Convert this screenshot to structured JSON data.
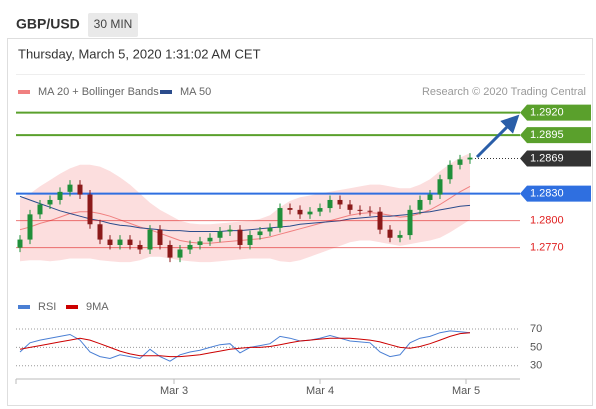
{
  "header": {
    "symbol": "GBP/USD",
    "interval": "30 MIN",
    "date": "Thursday, March 5, 2020 1:31:02 AM CET"
  },
  "chart_data": [
    {
      "type": "candlestick",
      "annotation": "Research © 2020 Trading Central",
      "xlim": [
        -0.4,
        50
      ],
      "ylim": [
        1.2723,
        1.2934
      ],
      "up_color": "#1f8f3a",
      "down_color": "#8b1a1a",
      "open": [
        1.277,
        1.2779,
        1.2807,
        1.2818,
        1.2823,
        1.2832,
        1.284,
        1.2829,
        1.2796,
        1.2779,
        1.2773,
        1.2779,
        1.2773,
        1.2768,
        1.279,
        1.2773,
        1.2759,
        1.2768,
        1.2773,
        1.2777,
        1.2781,
        1.2788,
        1.279,
        1.2773,
        1.2784,
        1.2788,
        1.2792,
        1.2814,
        1.2812,
        1.2807,
        1.281,
        1.2814,
        1.2823,
        1.2818,
        1.2812,
        1.2811,
        1.281,
        1.279,
        1.2781,
        1.2784,
        1.2812,
        1.2823,
        1.2829,
        1.2846,
        1.2862,
        1.2868
      ],
      "high": [
        1.2784,
        1.2812,
        1.2823,
        1.2828,
        1.2837,
        1.2845,
        1.2845,
        1.2834,
        1.2801,
        1.2784,
        1.2784,
        1.2784,
        1.2778,
        1.2795,
        1.2795,
        1.2778,
        1.2773,
        1.2778,
        1.2782,
        1.2786,
        1.2793,
        1.2795,
        1.2795,
        1.2789,
        1.2793,
        1.2797,
        1.2819,
        1.2819,
        1.2817,
        1.2815,
        1.2819,
        1.2828,
        1.2828,
        1.2823,
        1.2817,
        1.2816,
        1.2815,
        1.2795,
        1.2789,
        1.2817,
        1.2828,
        1.2834,
        1.2851,
        1.2867,
        1.2873,
        1.2875
      ],
      "low": [
        1.2765,
        1.2774,
        1.2802,
        1.2813,
        1.2818,
        1.2827,
        1.2824,
        1.2791,
        1.2774,
        1.2768,
        1.2768,
        1.2768,
        1.2763,
        1.2763,
        1.2768,
        1.2754,
        1.2754,
        1.2763,
        1.2768,
        1.2772,
        1.2776,
        1.2783,
        1.2768,
        1.2768,
        1.2779,
        1.2783,
        1.2787,
        1.2807,
        1.2802,
        1.2802,
        1.2805,
        1.2809,
        1.2813,
        1.2807,
        1.2806,
        1.2805,
        1.2785,
        1.2776,
        1.2776,
        1.2779,
        1.2807,
        1.2818,
        1.2824,
        1.2841,
        1.2857,
        1.2863
      ],
      "close": [
        1.2779,
        1.2807,
        1.2818,
        1.2823,
        1.2832,
        1.284,
        1.2829,
        1.2796,
        1.2779,
        1.2773,
        1.2779,
        1.2773,
        1.2768,
        1.279,
        1.2773,
        1.2759,
        1.2768,
        1.2773,
        1.2777,
        1.2781,
        1.2788,
        1.279,
        1.2773,
        1.2784,
        1.2788,
        1.2792,
        1.2814,
        1.2812,
        1.2807,
        1.281,
        1.2814,
        1.2823,
        1.2818,
        1.2812,
        1.2811,
        1.281,
        1.279,
        1.2781,
        1.2784,
        1.2812,
        1.2823,
        1.2829,
        1.2846,
        1.2862,
        1.2868,
        1.287
      ],
      "series": [
        {
          "name": "MA 20 + Bollinger Bands",
          "color": "#f08080",
          "band_color": "#fcdede",
          "values": [
            1.279,
            1.2793,
            1.2797,
            1.28,
            1.2804,
            1.2808,
            1.281,
            1.281,
            1.2808,
            1.2805,
            1.2801,
            1.2797,
            1.2793,
            1.279,
            1.2786,
            1.2782,
            1.2778,
            1.2776,
            1.2775,
            1.2775,
            1.2776,
            1.2777,
            1.2778,
            1.2779,
            1.278,
            1.2782,
            1.2785,
            1.2788,
            1.2791,
            1.2794,
            1.2797,
            1.28,
            1.2803,
            1.2806,
            1.2808,
            1.2809,
            1.2808,
            1.2806,
            1.2804,
            1.2805,
            1.2808,
            1.2812,
            1.2818,
            1.2825,
            1.2832,
            1.2838
          ],
          "band_upper": [
            1.2825,
            1.283,
            1.2838,
            1.2845,
            1.2852,
            1.2858,
            1.2862,
            1.2862,
            1.286,
            1.2855,
            1.2848,
            1.284,
            1.283,
            1.282,
            1.2812,
            1.2806,
            1.28,
            1.2797,
            1.2796,
            1.2796,
            1.2797,
            1.2798,
            1.2799,
            1.28,
            1.2802,
            1.2806,
            1.2815,
            1.2822,
            1.2826,
            1.2828,
            1.283,
            1.2832,
            1.2834,
            1.2836,
            1.2838,
            1.284,
            1.284,
            1.2838,
            1.2836,
            1.2836,
            1.284,
            1.2846,
            1.2855,
            1.2863,
            1.287,
            1.2875
          ],
          "band_lower": [
            1.2755,
            1.2756,
            1.2756,
            1.2755,
            1.2756,
            1.2758,
            1.2758,
            1.2758,
            1.2756,
            1.2755,
            1.2754,
            1.2754,
            1.2756,
            1.276,
            1.276,
            1.2758,
            1.2756,
            1.2755,
            1.2754,
            1.2754,
            1.2755,
            1.2756,
            1.2757,
            1.2758,
            1.2758,
            1.2758,
            1.2755,
            1.2754,
            1.2756,
            1.276,
            1.2764,
            1.2768,
            1.2772,
            1.2776,
            1.2778,
            1.2778,
            1.2776,
            1.2774,
            1.2772,
            1.2774,
            1.2776,
            1.2778,
            1.2781,
            1.2787,
            1.2794,
            1.2801
          ]
        },
        {
          "name": "MA 50",
          "color": "#2b4c8c",
          "values": [
            1.2827,
            1.2823,
            1.2819,
            1.2815,
            1.2811,
            1.2808,
            1.2805,
            1.2802,
            1.28,
            1.2797,
            1.2795,
            1.2794,
            1.2792,
            1.2791,
            1.279,
            1.2789,
            1.2789,
            1.2788,
            1.2788,
            1.2788,
            1.2788,
            1.2789,
            1.2789,
            1.279,
            1.2791,
            1.2792,
            1.2793,
            1.2794,
            1.2796,
            1.2797,
            1.2798,
            1.2799,
            1.28,
            1.2802,
            1.2803,
            1.2804,
            1.2805,
            1.2805,
            1.2806,
            1.2807,
            1.2809,
            1.281,
            1.2812,
            1.2814,
            1.2816,
            1.2817
          ]
        }
      ],
      "levels": [
        {
          "value": 1.292,
          "label": "1.2920",
          "color": "#5aa02c",
          "style": "line-box"
        },
        {
          "value": 1.2895,
          "color": "#5aa02c",
          "style": "line-box"
        },
        {
          "value": 1.2869,
          "color": "#333333",
          "style": "dotted-box"
        },
        {
          "value": 1.283,
          "label": "1.2830",
          "color": "#2f6fe0",
          "style": "line-box"
        },
        {
          "value": 1.28,
          "label": "1.2800",
          "color": "#e02020",
          "style": "line-text"
        },
        {
          "value": 1.277,
          "label": "1.2770",
          "color": "#e02020",
          "style": "line-text"
        }
      ]
    },
    {
      "type": "line",
      "xlim": [
        -0.4,
        50
      ],
      "xticks": [
        {
          "value": 15.4,
          "label": "Mar 3"
        },
        {
          "value": 30,
          "label": "Mar 4"
        },
        {
          "value": 44.6,
          "label": "Mar 5"
        }
      ],
      "ylim": [
        20,
        82
      ],
      "yticks": [
        70,
        50,
        30
      ],
      "grid": true,
      "series": [
        {
          "name": "RSI",
          "color": "#4a7fd4",
          "values": [
            45,
            55,
            58,
            60,
            62,
            64,
            58,
            45,
            40,
            38,
            42,
            40,
            38,
            48,
            40,
            35,
            42,
            45,
            47,
            50,
            53,
            54,
            44,
            50,
            52,
            54,
            62,
            60,
            57,
            58,
            60,
            63,
            60,
            57,
            56,
            55,
            45,
            40,
            42,
            55,
            60,
            62,
            66,
            68,
            67,
            66
          ]
        },
        {
          "name": "9MA",
          "color": "#cc0000",
          "values": [
            48,
            50,
            52,
            54,
            56,
            58,
            60,
            58,
            54,
            50,
            46,
            43,
            41,
            41,
            41,
            40,
            40,
            41,
            42,
            44,
            46,
            48,
            49,
            50,
            50,
            51,
            53,
            55,
            57,
            58,
            59,
            60,
            60,
            60,
            59,
            58,
            56,
            53,
            50,
            49,
            51,
            54,
            58,
            62,
            65,
            66
          ]
        }
      ]
    }
  ]
}
